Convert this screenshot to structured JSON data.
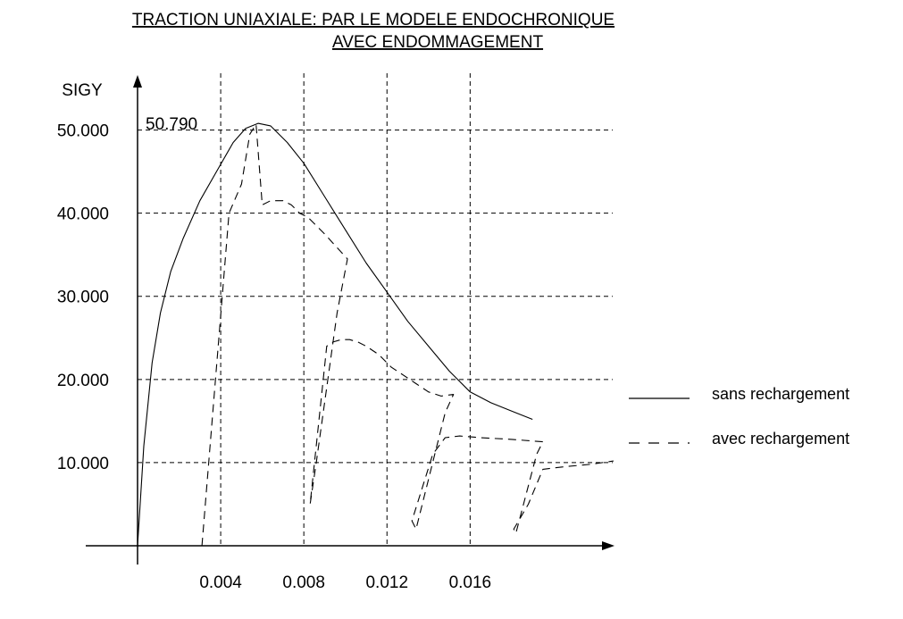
{
  "chart_data": {
    "type": "line",
    "title": "TRACTION UNIAXIALE: PAR LE MODELE ENDOCHRONIQUE",
    "subtitle": "AVEC ENDOMMAGEMENT",
    "ylabel": "SIGY",
    "xlabel": "",
    "xlim": [
      0,
      0.02286
    ],
    "ylim": [
      0,
      53.5
    ],
    "x_ticks": [
      0.004,
      0.008,
      0.012,
      0.016
    ],
    "x_tick_labels": [
      "0.004",
      "0.008",
      "0.012",
      "0.016"
    ],
    "y_ticks": [
      10,
      20,
      30,
      40,
      50
    ],
    "y_tick_labels": [
      "10.000",
      "20.000",
      "30.000",
      "40.000",
      "50.000"
    ],
    "grid": true,
    "legend_position": "right",
    "annotations": [
      {
        "text": "50.790",
        "x": 0.00525,
        "y": 50.79
      }
    ],
    "series": [
      {
        "name": "sans rechargement",
        "style": "solid",
        "x": [
          0,
          0.0003,
          0.0007,
          0.0011,
          0.0016,
          0.0022,
          0.003,
          0.0038,
          0.0046,
          0.0052,
          0.0058,
          0.0064,
          0.0072,
          0.008,
          0.009,
          0.01,
          0.011,
          0.012,
          0.013,
          0.014,
          0.015,
          0.016,
          0.017,
          0.018,
          0.019
        ],
        "y": [
          0,
          12,
          22,
          28,
          33,
          37,
          41.5,
          45,
          48.5,
          50.2,
          50.8,
          50.5,
          48.5,
          46,
          42,
          38,
          34,
          30.5,
          27,
          24,
          21,
          18.5,
          17.2,
          16.2,
          15.2
        ]
      },
      {
        "name": "avec rechargement",
        "style": "dashed",
        "x": [
          0.0031,
          0.0044,
          0.005,
          0.0054,
          0.0057,
          0.006,
          0.0064,
          0.007,
          0.0074,
          0.0078,
          0.0082,
          0.009,
          0.0101,
          0.0101,
          0.0096,
          0.0086,
          0.0083,
          0.0091,
          0.0094,
          0.0098,
          0.0102,
          0.0106,
          0.011,
          0.0116,
          0.0122,
          0.0128,
          0.0134,
          0.014,
          0.0146,
          0.0152,
          0.0152,
          0.0148,
          0.0134,
          0.0132,
          0.0142,
          0.0148,
          0.0155,
          0.0165,
          0.018,
          0.0195,
          0.0195,
          0.0192,
          0.0182,
          0.0181,
          0.0188,
          0.0195,
          0.0205,
          0.0218,
          0.0229
        ],
        "y": [
          0,
          40,
          43.5,
          49.5,
          50.7,
          41,
          41.5,
          41.5,
          41,
          40,
          39.5,
          37.5,
          34.5,
          34.5,
          28,
          10,
          5,
          24,
          24.5,
          24.8,
          24.8,
          24.5,
          24,
          23,
          21.5,
          20.5,
          19.5,
          18.5,
          18,
          18.2,
          18.2,
          16,
          2,
          3,
          11,
          13,
          13.2,
          13,
          12.8,
          12.5,
          12.5,
          11,
          1.5,
          2,
          5,
          9.2,
          9.5,
          9.8,
          10.2
        ]
      }
    ]
  }
}
